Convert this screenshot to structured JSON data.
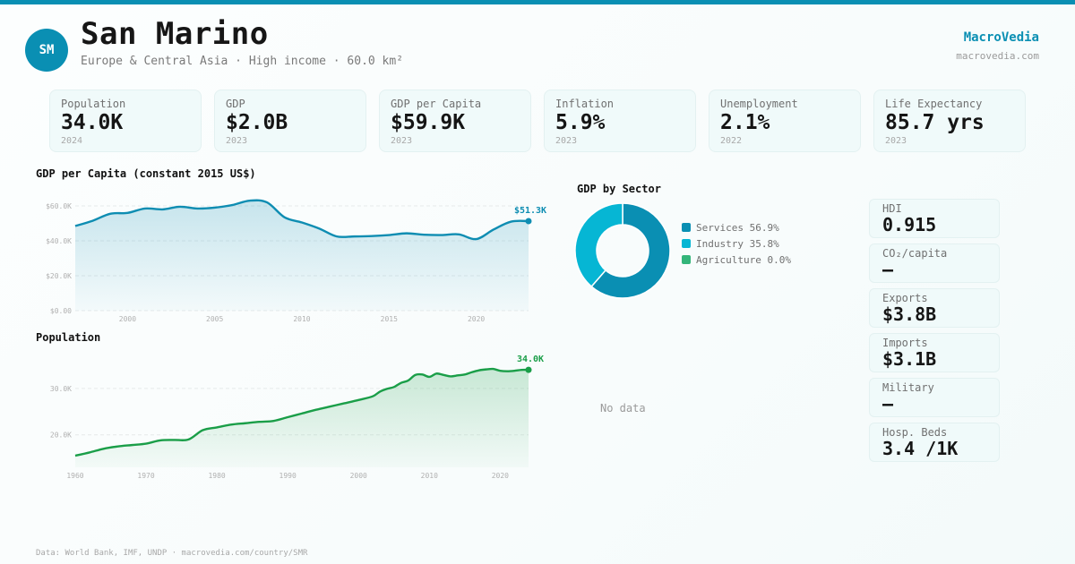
{
  "header": {
    "avatar_initials": "SM",
    "country_name": "San Marino",
    "subtitle": "Europe & Central Asia · High income · 60.0 km²",
    "brand": "MacroVedia",
    "brand_url": "macrovedia.com"
  },
  "colors": {
    "accent": "#0a8fb3",
    "gdp_line": "#0e8db2",
    "population_line": "#1a9e48",
    "services": "#0a8fb3",
    "industry": "#06b6d4",
    "agriculture": "#34b57a"
  },
  "kpis": [
    {
      "label": "Population",
      "value": "34.0K",
      "year": "2024"
    },
    {
      "label": "GDP",
      "value": "$2.0B",
      "year": "2023"
    },
    {
      "label": "GDP per Capita",
      "value": "$59.9K",
      "year": "2023"
    },
    {
      "label": "Inflation",
      "value": "5.9%",
      "year": "2023"
    },
    {
      "label": "Unemployment",
      "value": "2.1%",
      "year": "2022"
    },
    {
      "label": "Life Expectancy",
      "value": "85.7 yrs",
      "year": "2023"
    }
  ],
  "side_stats": [
    {
      "label": "HDI",
      "value": "0.915"
    },
    {
      "label": "CO₂/capita",
      "value": "—"
    },
    {
      "label": "Exports",
      "value": "$3.8B"
    },
    {
      "label": "Imports",
      "value": "$3.1B"
    },
    {
      "label": "Military",
      "value": "—"
    },
    {
      "label": "Hosp. Beds",
      "value": "3.4 /1K"
    }
  ],
  "no_data_label": "No data",
  "footer": "Data: World Bank, IMF, UNDP · macrovedia.com/country/SMR",
  "chart_data": [
    {
      "type": "area",
      "title": "GDP per Capita (constant 2015 US$)",
      "xlabel": "",
      "ylabel": "",
      "x": [
        1997,
        1998,
        1999,
        2000,
        2001,
        2002,
        2003,
        2004,
        2005,
        2006,
        2007,
        2008,
        2009,
        2010,
        2011,
        2012,
        2013,
        2014,
        2015,
        2016,
        2017,
        2018,
        2019,
        2020,
        2021,
        2022,
        2023
      ],
      "values": [
        48.5,
        51.5,
        55.5,
        56.0,
        58.5,
        58.0,
        59.5,
        58.5,
        59.0,
        60.5,
        63.0,
        62.0,
        53.5,
        50.5,
        47.0,
        42.5,
        42.5,
        42.7,
        43.3,
        44.3,
        43.5,
        43.3,
        43.7,
        41.0,
        46.5,
        51.0,
        51.3
      ],
      "units": "thousand US$",
      "yticks": [
        "$0.00",
        "$20.0K",
        "$40.0K",
        "$60.0K"
      ],
      "ytick_values": [
        0,
        20,
        40,
        60
      ],
      "xticks": [
        "2000",
        "2005",
        "2010",
        "2015",
        "2020"
      ],
      "ylim": [
        0,
        60
      ],
      "xlim": [
        1997,
        2023
      ],
      "last_label": "$51.3K",
      "grid": true
    },
    {
      "type": "area",
      "title": "Population",
      "xlabel": "",
      "ylabel": "",
      "x": [
        1960,
        1962,
        1964,
        1966,
        1968,
        1970,
        1972,
        1974,
        1976,
        1978,
        1980,
        1982,
        1984,
        1986,
        1988,
        1990,
        1992,
        1994,
        1996,
        1998,
        2000,
        2002,
        2003,
        2004,
        2005,
        2006,
        2007,
        2008,
        2009,
        2010,
        2011,
        2012,
        2013,
        2014,
        2015,
        2016,
        2017,
        2018,
        2019,
        2020,
        2021,
        2022,
        2023,
        2024
      ],
      "values": [
        15.5,
        16.2,
        17.0,
        17.5,
        17.8,
        18.1,
        18.8,
        18.9,
        19.0,
        21.0,
        21.6,
        22.2,
        22.5,
        22.8,
        23.0,
        23.8,
        24.6,
        25.4,
        26.1,
        26.8,
        27.5,
        28.3,
        29.3,
        29.9,
        30.3,
        31.2,
        31.7,
        32.9,
        33.0,
        32.5,
        33.2,
        32.9,
        32.6,
        32.8,
        33.0,
        33.5,
        33.9,
        34.1,
        34.2,
        33.8,
        33.7,
        33.8,
        34.0,
        34.0
      ],
      "units": "thousand people",
      "yticks": [
        "20.0K",
        "30.0K"
      ],
      "ytick_values": [
        20,
        30
      ],
      "xticks": [
        "1960",
        "1970",
        "1980",
        "1990",
        "2000",
        "2010",
        "2020"
      ],
      "ylim": [
        13.0,
        37.5
      ],
      "xlim": [
        1960,
        2024
      ],
      "last_label": "34.0K",
      "grid": true
    },
    {
      "type": "pie",
      "title": "GDP by Sector",
      "categories": [
        "Services",
        "Industry",
        "Agriculture"
      ],
      "values": [
        56.9,
        35.8,
        0.0
      ],
      "legend": [
        "Services 56.9%",
        "Industry 35.8%",
        "Agriculture 0.0%"
      ],
      "legend_position": "right"
    }
  ]
}
